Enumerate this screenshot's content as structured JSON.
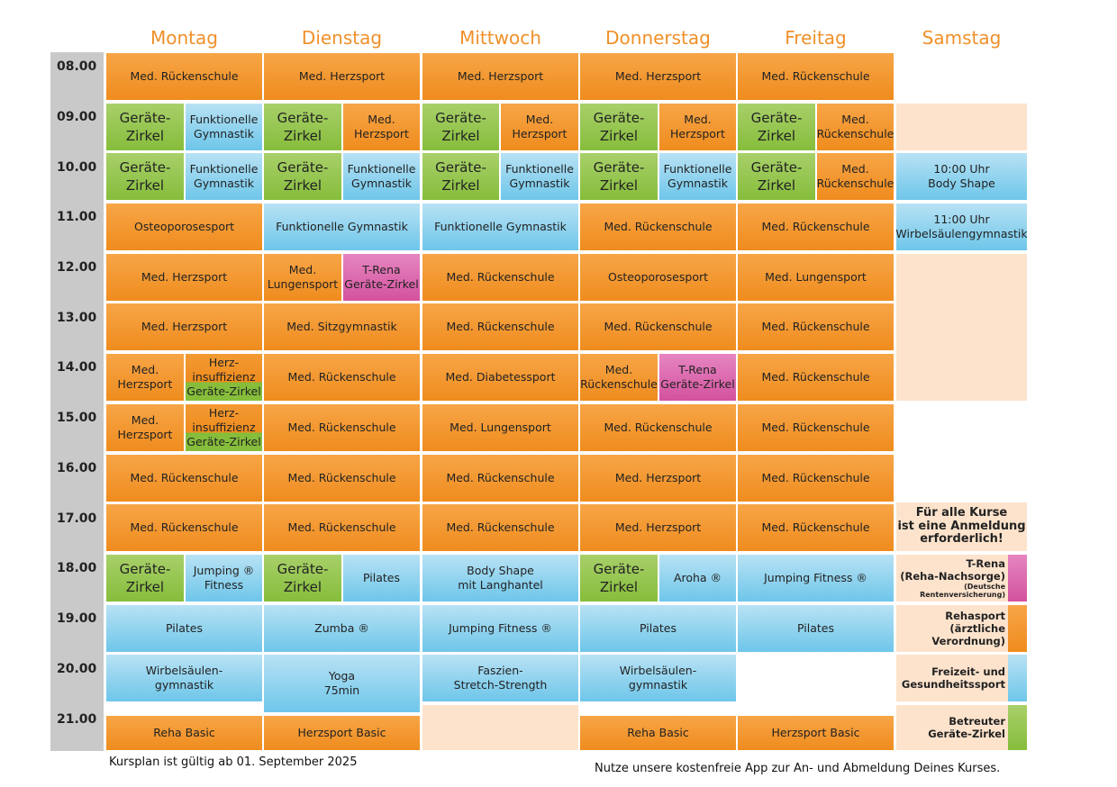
{
  "days": [
    "Montag",
    "Dienstag",
    "Mittwoch",
    "Donnerstag",
    "Freitag",
    "Samstag"
  ],
  "hours": [
    "08.00",
    "09.00",
    "10.00",
    "11.00",
    "12.00",
    "13.00",
    "14.00",
    "15.00",
    "16.00",
    "17.00",
    "18.00",
    "19.00",
    "20.00",
    "21.00"
  ],
  "courses": {
    "med_rueckenschule": "Med. Rückenschule",
    "med_herzsport": "Med. Herzsport",
    "geraete_zirkel": "Geräte-\nZirkel",
    "funktionelle_gymnastik_2l": "Funktionelle\nGymnastik",
    "funktionelle_gymnastik": "Funktionelle Gymnastik",
    "med_herzsport_2l": "Med.\nHerzsport",
    "med_rueckenschule_2l": "Med.\nRückenschule",
    "osteoporosesport": "Osteoporosesport",
    "med_lungensport": "Med. Lungensport",
    "med_lungensport_2l": "Med.\nLungensport",
    "trena_geraete": "T-Rena\nGeräte-Zirkel",
    "med_sitzgymnastik": "Med. Sitzgymnastik",
    "herzinsuffizienz": "Herz-\ninsuffizienz\nGeräte-Zirkel",
    "med_diabetessport": "Med. Diabetessport",
    "jumping_fitness_2l": "Jumping ®\nFitness",
    "pilates": "Pilates",
    "body_shape_langhantel": "Body Shape\nmit Langhantel",
    "aroha": "Aroha ®",
    "jumping_fitness": "Jumping Fitness ®",
    "zumba": "Zumba ®",
    "wirbelsaeulen_gymnastik": "Wirbelsäulen-\ngymnastik",
    "yoga": "Yoga\n75min",
    "faszien": "Faszien-\nStretch-Strength",
    "reha_basic": "Reha Basic",
    "herzsport_basic": "Herzsport Basic",
    "sa_body_shape": "10:00 Uhr\nBody Shape",
    "sa_wirbelsaeule": "11:00 Uhr\nWirbelsäulengymnastik"
  },
  "legend": {
    "anmeldung": "Für alle Kurse\nist eine Anmeldung\nerforderlich!",
    "trena_title": "T-Rena\n(Reha-Nachsorge)",
    "trena_small": "(Deutsche Rentenversicherung)",
    "rehasport": "Rehasport\n(ärztliche Verordnung)",
    "freizeit": "Freizeit- und\nGesundheitssport",
    "betreuter": "Betreuter\nGeräte-Zirkel"
  },
  "colors": {
    "orange": "#ef8c1e",
    "blue": "#6ec6ea",
    "green": "#86bd3b",
    "pink": "#d3529e",
    "peach": "#fde3cc",
    "header": "#f0902a"
  },
  "footer": {
    "valid_from": "Kursplan ist gültig ab 01. September 2025",
    "app_note": "Nutze unsere kostenfreie App zur An- und Abmeldung Deines Kurses."
  }
}
